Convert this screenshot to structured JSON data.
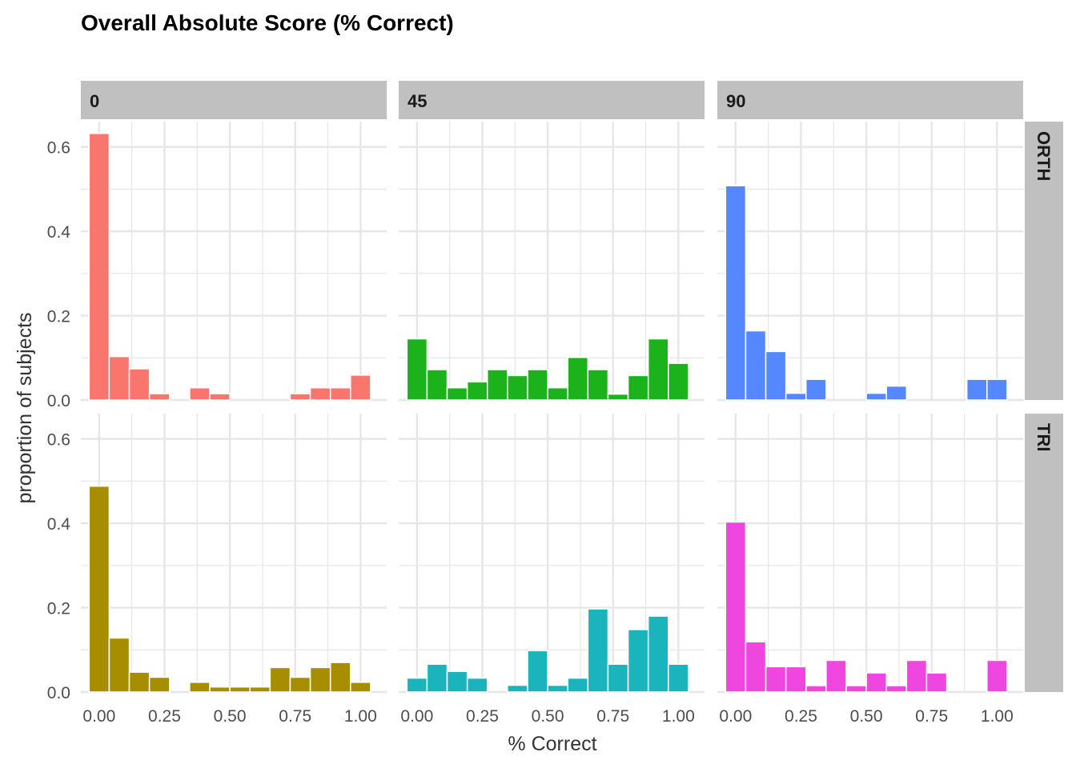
{
  "chart_data": {
    "type": "bar",
    "title": "Overall Absolute Score (% Correct)",
    "xlabel": "% Correct",
    "ylabel": "proportion of subjects",
    "facet_columns": [
      "0",
      "45",
      "90"
    ],
    "facet_rows": [
      "ORTH",
      "TRI"
    ],
    "x_ticks": [
      "0.00",
      "0.25",
      "0.50",
      "0.75",
      "1.00"
    ],
    "y_ticks": [
      "0.0",
      "0.2",
      "0.4",
      "0.6"
    ],
    "xlim": [
      -0.07,
      1.1
    ],
    "ylim": [
      0,
      0.66
    ],
    "bin_width": 0.0769,
    "x": [
      0.0,
      0.0769,
      0.1538,
      0.2308,
      0.3077,
      0.3846,
      0.4615,
      0.5385,
      0.6154,
      0.6923,
      0.7692,
      0.8462,
      0.9231,
      1.0
    ],
    "grid": true,
    "legend": "none",
    "panels": [
      {
        "row": "ORTH",
        "col": "0",
        "color": "#F8766D",
        "values": [
          0.632,
          0.103,
          0.074,
          0.015,
          0.0,
          0.029,
          0.015,
          0.0,
          0.0,
          0.0,
          0.015,
          0.029,
          0.029,
          0.059
        ]
      },
      {
        "row": "ORTH",
        "col": "45",
        "color": "#1BB21B",
        "values": [
          0.145,
          0.072,
          0.029,
          0.043,
          0.072,
          0.058,
          0.072,
          0.029,
          0.101,
          0.072,
          0.014,
          0.058,
          0.145,
          0.087
        ]
      },
      {
        "row": "ORTH",
        "col": "90",
        "color": "#5588FF",
        "values": [
          0.508,
          0.164,
          0.115,
          0.016,
          0.049,
          0.0,
          0.0,
          0.016,
          0.033,
          0.0,
          0.0,
          0.0,
          0.049,
          0.049
        ]
      },
      {
        "row": "TRI",
        "col": "0",
        "color": "#A68E00",
        "values": [
          0.488,
          0.128,
          0.047,
          0.035,
          0.0,
          0.023,
          0.012,
          0.012,
          0.012,
          0.058,
          0.035,
          0.058,
          0.07,
          0.023
        ]
      },
      {
        "row": "TRI",
        "col": "45",
        "color": "#1AB4BC",
        "values": [
          0.033,
          0.066,
          0.049,
          0.033,
          0.0,
          0.016,
          0.098,
          0.016,
          0.033,
          0.197,
          0.066,
          0.148,
          0.18,
          0.066
        ]
      },
      {
        "row": "TRI",
        "col": "90",
        "color": "#EE46DE",
        "values": [
          0.403,
          0.119,
          0.06,
          0.06,
          0.015,
          0.075,
          0.015,
          0.045,
          0.015,
          0.075,
          0.045,
          0.0,
          0.0,
          0.075
        ]
      }
    ]
  }
}
